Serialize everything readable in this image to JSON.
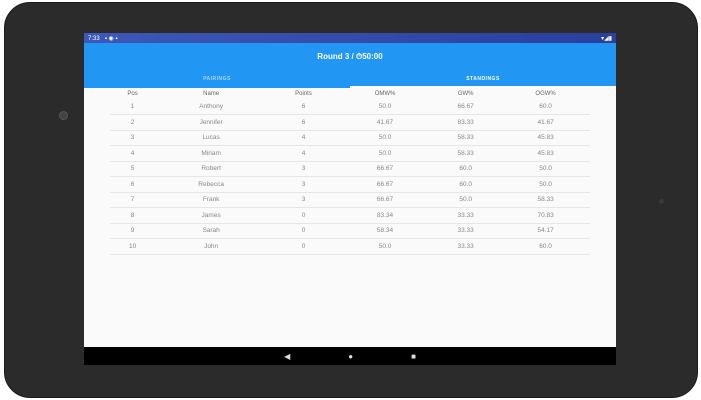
{
  "status_bar": {
    "time": "7:33"
  },
  "header": {
    "title": "Round 3 / ",
    "timer": "50:00"
  },
  "tabs": [
    {
      "label": "PAIRINGS",
      "active": false
    },
    {
      "label": "STANDINGS",
      "active": true
    }
  ],
  "table": {
    "columns": [
      "Pos",
      "Name",
      "Points",
      "OMW%",
      "GW%",
      "OGW%"
    ],
    "rows": [
      [
        "1",
        "Anthony",
        "6",
        "50.0",
        "66.67",
        "60.0"
      ],
      [
        "2",
        "Jennifer",
        "6",
        "41.67",
        "83.33",
        "41.67"
      ],
      [
        "3",
        "Lucas",
        "4",
        "50.0",
        "58.33",
        "45.83"
      ],
      [
        "4",
        "Miriam",
        "4",
        "50.0",
        "58.33",
        "45.83"
      ],
      [
        "5",
        "Robert",
        "3",
        "66.67",
        "60.0",
        "50.0"
      ],
      [
        "6",
        "Rebecca",
        "3",
        "66.67",
        "60.0",
        "50.0"
      ],
      [
        "7",
        "Frank",
        "3",
        "66.67",
        "50.0",
        "58.33"
      ],
      [
        "8",
        "James",
        "0",
        "83.34",
        "33.33",
        "70.83"
      ],
      [
        "9",
        "Sarah",
        "0",
        "58.34",
        "33.33",
        "54.17"
      ],
      [
        "10",
        "John",
        "0",
        "50.0",
        "33.33",
        "60.0"
      ]
    ]
  },
  "colors": {
    "primary": "#2196f3",
    "status_bar": "#3d58b8"
  }
}
